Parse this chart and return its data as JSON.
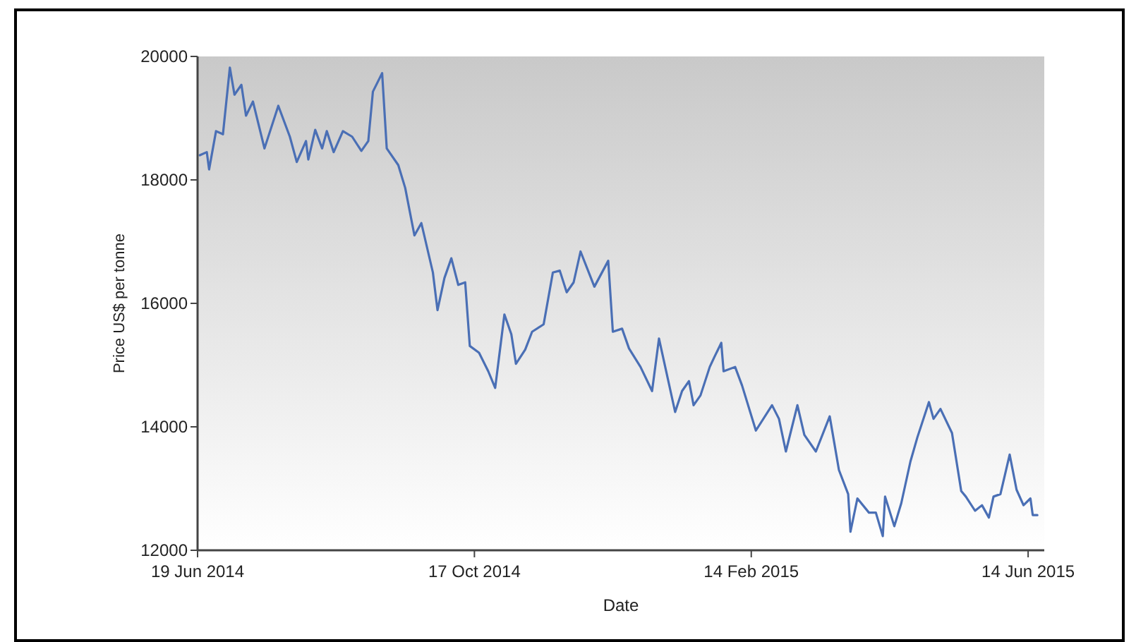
{
  "chart_data": {
    "type": "line",
    "xlabel": "Date",
    "ylabel": "Price US$ per tonne",
    "xlim": [
      "2014-06-19",
      "2015-06-21"
    ],
    "ylim": [
      12000,
      20000
    ],
    "xticks": [
      {
        "value": "2014-06-19",
        "label": "19 Jun 2014"
      },
      {
        "value": "2014-10-17",
        "label": "17 Oct 2014"
      },
      {
        "value": "2015-02-14",
        "label": "14 Feb 2015"
      },
      {
        "value": "2015-06-14",
        "label": "14 Jun 2015"
      }
    ],
    "yticks": [
      12000,
      14000,
      16000,
      18000,
      20000
    ],
    "grid": false,
    "marker": "none",
    "line_style": "solid",
    "x": [
      "2014-06-20",
      "2014-06-23",
      "2014-06-24",
      "2014-06-27",
      "2014-06-30",
      "2014-07-03",
      "2014-07-05",
      "2014-07-08",
      "2014-07-10",
      "2014-07-13",
      "2014-07-18",
      "2014-07-24",
      "2014-07-29",
      "2014-08-01",
      "2014-08-05",
      "2014-08-06",
      "2014-08-09",
      "2014-08-12",
      "2014-08-14",
      "2014-08-17",
      "2014-08-21",
      "2014-08-25",
      "2014-08-29",
      "2014-09-01",
      "2014-09-03",
      "2014-09-07",
      "2014-09-09",
      "2014-09-14",
      "2014-09-17",
      "2014-09-21",
      "2014-09-24",
      "2014-09-29",
      "2014-10-01",
      "2014-10-04",
      "2014-10-07",
      "2014-10-10",
      "2014-10-13",
      "2014-10-15",
      "2014-10-19",
      "2014-10-23",
      "2014-10-26",
      "2014-10-30",
      "2014-11-02",
      "2014-11-04",
      "2014-11-08",
      "2014-11-11",
      "2014-11-16",
      "2014-11-20",
      "2014-11-23",
      "2014-11-26",
      "2014-11-29",
      "2014-12-02",
      "2014-12-08",
      "2014-12-14",
      "2014-12-16",
      "2014-12-20",
      "2014-12-23",
      "2014-12-28",
      "2015-01-02",
      "2015-01-05",
      "2015-01-12",
      "2015-01-15",
      "2015-01-18",
      "2015-01-20",
      "2015-01-23",
      "2015-01-27",
      "2015-01-29",
      "2015-02-01",
      "2015-02-02",
      "2015-02-07",
      "2015-02-10",
      "2015-02-16",
      "2015-02-23",
      "2015-02-26",
      "2015-03-01",
      "2015-03-06",
      "2015-03-09",
      "2015-03-14",
      "2015-03-20",
      "2015-03-24",
      "2015-03-28",
      "2015-03-29",
      "2015-04-01",
      "2015-04-06",
      "2015-04-09",
      "2015-04-12",
      "2015-04-13",
      "2015-04-17",
      "2015-04-20",
      "2015-04-24",
      "2015-04-27",
      "2015-05-02",
      "2015-05-04",
      "2015-05-07",
      "2015-05-12",
      "2015-05-16",
      "2015-05-18",
      "2015-05-22",
      "2015-05-25",
      "2015-05-28",
      "2015-05-30",
      "2015-06-02",
      "2015-06-06",
      "2015-06-09",
      "2015-06-12",
      "2015-06-15",
      "2015-06-16",
      "2015-06-18"
    ],
    "series": [
      {
        "color": "#4a6fb5",
        "values": [
          18400,
          18450,
          18170,
          18790,
          18740,
          19820,
          19380,
          19540,
          19040,
          19270,
          18510,
          19200,
          18700,
          18290,
          18630,
          18330,
          18810,
          18510,
          18790,
          18450,
          18790,
          18700,
          18470,
          18630,
          19430,
          19730,
          18510,
          18240,
          17870,
          17100,
          17300,
          16500,
          15890,
          16410,
          16730,
          16300,
          16340,
          15310,
          15200,
          14900,
          14630,
          15820,
          15500,
          15020,
          15250,
          15540,
          15660,
          16500,
          16530,
          16180,
          16340,
          16840,
          16270,
          16690,
          15540,
          15590,
          15270,
          14970,
          14580,
          15430,
          14240,
          14580,
          14740,
          14350,
          14510,
          14970,
          15130,
          15360,
          14900,
          14970,
          14670,
          13940,
          14350,
          14130,
          13600,
          14350,
          13870,
          13600,
          14170,
          13300,
          12910,
          12300,
          12840,
          12610,
          12610,
          12230,
          12870,
          12390,
          12760,
          13440,
          13830,
          14400,
          14130,
          14290,
          13900,
          12960,
          12870,
          12640,
          12730,
          12530,
          12870,
          12910,
          13550,
          12980,
          12730,
          12840,
          12570,
          12570
        ]
      }
    ]
  }
}
